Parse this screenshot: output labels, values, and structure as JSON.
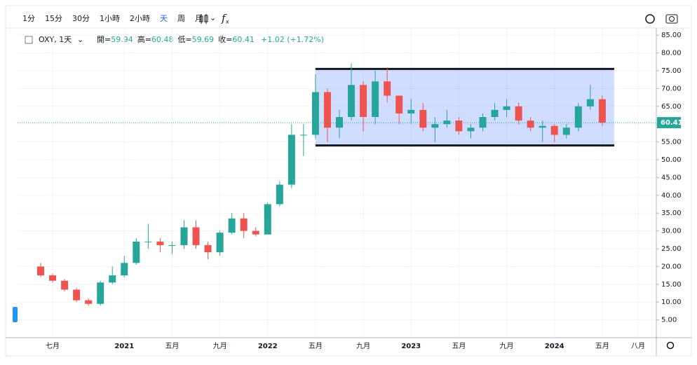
{
  "toolbar": {
    "intervals": [
      "1分",
      "15分",
      "30分",
      "1小時",
      "2小時",
      "天",
      "周",
      "月"
    ],
    "active": 5
  },
  "legend": {
    "symbol": "OXY, 1天",
    "ohlc": [
      {
        "label": "開=",
        "value": 59.94
      },
      {
        "label": "高=",
        "value": 60.48
      },
      {
        "label": "低=",
        "value": 59.69
      },
      {
        "label": "收=",
        "value": 60.41
      }
    ],
    "change": "+1.02 (+1.72%)"
  },
  "chart_data": {
    "type": "candlestick",
    "up_color": "#26a69a",
    "down_color": "#ef5350",
    "grid": true,
    "x": [
      "2020-06",
      "2020-07",
      "2020-08",
      "2020-09",
      "2020-10",
      "2020-11",
      "2020-12",
      "2021-01",
      "2021-02",
      "2021-03",
      "2021-04",
      "2021-05",
      "2021-06",
      "2021-07",
      "2021-08",
      "2021-09",
      "2021-10",
      "2021-11",
      "2021-12",
      "2022-01",
      "2022-02",
      "2022-03",
      "2022-04",
      "2022-05",
      "2022-06",
      "2022-07",
      "2022-08",
      "2022-09",
      "2022-10",
      "2022-11",
      "2022-12",
      "2023-01",
      "2023-02",
      "2023-03",
      "2023-04",
      "2023-05",
      "2023-06",
      "2023-07",
      "2023-08",
      "2023-09",
      "2023-10",
      "2023-11",
      "2023-12",
      "2024-01",
      "2024-02",
      "2024-03",
      "2024-04",
      "2024-05"
    ],
    "open": [
      20,
      17.5,
      16,
      13.5,
      10.5,
      9.5,
      15.5,
      17.5,
      21,
      27,
      27,
      26,
      26,
      31,
      26,
      24,
      29.5,
      33.5,
      30,
      29,
      37.5,
      43,
      57,
      57,
      69,
      59,
      62,
      71,
      62,
      72,
      68,
      63,
      64,
      59,
      60,
      61,
      58,
      59,
      62,
      64,
      65,
      61,
      59,
      59.5,
      57,
      59,
      65,
      67
    ],
    "high": [
      21,
      18,
      16.5,
      14,
      11,
      16,
      20,
      23,
      28,
      32,
      28,
      27,
      33,
      33,
      27,
      30,
      35,
      35,
      31,
      38,
      44,
      60,
      60,
      74,
      70,
      64,
      77,
      72,
      75,
      76,
      68,
      67,
      66,
      62,
      64,
      62,
      60,
      63,
      66,
      67,
      66,
      62,
      61,
      60,
      60,
      66,
      71,
      68
    ],
    "low": [
      17,
      15.5,
      13,
      10,
      9,
      9,
      15,
      17,
      20.5,
      25,
      24,
      23.5,
      25,
      25,
      22,
      23,
      29,
      28,
      28.5,
      29,
      37,
      42,
      51,
      56,
      55,
      56,
      61,
      58,
      60,
      66,
      60,
      60,
      58,
      55,
      59,
      57,
      56,
      58,
      61,
      62,
      60,
      58,
      55,
      55,
      56,
      58,
      64,
      59.5
    ],
    "close": [
      17.5,
      16,
      13.5,
      10.5,
      9.5,
      15.5,
      17.5,
      21,
      27,
      27,
      26,
      26,
      31,
      26,
      24,
      29.5,
      33.5,
      30,
      29,
      37.5,
      43,
      57,
      57,
      69,
      59,
      62,
      71,
      62,
      72,
      68,
      63,
      64,
      59,
      60,
      61,
      58,
      59,
      62,
      64,
      65,
      61,
      59,
      59.5,
      57,
      59,
      65,
      67,
      60.41
    ],
    "ylim": [
      0,
      87
    ],
    "yticks": [
      {
        "value": 5,
        "label": "5.00"
      },
      {
        "value": 10,
        "label": "10.00"
      },
      {
        "value": 15,
        "label": "15.00"
      },
      {
        "value": 20,
        "label": "20.00"
      },
      {
        "value": 25,
        "label": "25.00"
      },
      {
        "value": 30,
        "label": "30.00"
      },
      {
        "value": 35,
        "label": "35.00"
      },
      {
        "value": 40,
        "label": "40.00"
      },
      {
        "value": 45,
        "label": "45.00"
      },
      {
        "value": 50,
        "label": "50.00"
      },
      {
        "value": 55,
        "label": "55.00"
      },
      {
        "value": 60,
        "label": "60.00"
      },
      {
        "value": 65,
        "label": "65.00"
      },
      {
        "value": 70,
        "label": "70.00"
      },
      {
        "value": 75,
        "label": "75.00"
      },
      {
        "value": 80,
        "label": "80.00"
      },
      {
        "value": 85,
        "label": "85.00"
      }
    ],
    "xticks": [
      {
        "value": "2020-07",
        "label": "七月"
      },
      {
        "value": "2021-01",
        "label": "2021"
      },
      {
        "value": "2021-05",
        "label": "五月"
      },
      {
        "value": "2021-09",
        "label": "九月"
      },
      {
        "value": "2022-01",
        "label": "2022"
      },
      {
        "value": "2022-05",
        "label": "五月"
      },
      {
        "value": "2022-09",
        "label": "九月"
      },
      {
        "value": "2023-01",
        "label": "2023"
      },
      {
        "value": "2023-05",
        "label": "五月"
      },
      {
        "value": "2023-09",
        "label": "九月"
      },
      {
        "value": "2024-01",
        "label": "2024"
      },
      {
        "value": "2024-05",
        "label": "五月"
      },
      {
        "value": "2024-08",
        "label": "八月"
      }
    ],
    "rectangle": {
      "x": [
        "2022-05",
        "2024-06"
      ],
      "y": [
        54,
        75.5
      ]
    }
  }
}
